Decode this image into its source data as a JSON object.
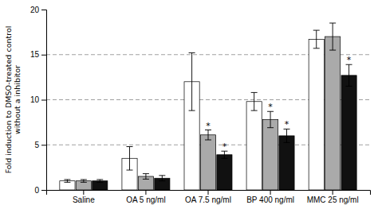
{
  "chart_data": {
    "type": "bar",
    "ylabel": "Fold induction to DMSO-treated control\nwithout a inhibitor",
    "categories": [
      "Saline",
      "OA 5 ng/ml",
      "OA 7.5 ng/ml",
      "BP 400 ng/ml",
      "MMC 25 ng/ml"
    ],
    "series": [
      {
        "color": "#ffffff",
        "values": [
          1.0,
          3.5,
          12.0,
          9.8,
          16.7
        ],
        "errors": [
          0.15,
          1.3,
          3.2,
          1.0,
          1.0
        ]
      },
      {
        "color": "#aaaaaa",
        "values": [
          1.0,
          1.5,
          6.1,
          7.8,
          17.0
        ],
        "errors": [
          0.15,
          0.3,
          0.55,
          0.9,
          1.5
        ]
      },
      {
        "color": "#111111",
        "values": [
          1.0,
          1.3,
          3.9,
          6.0,
          12.7
        ],
        "errors": [
          0.15,
          0.3,
          0.4,
          0.75,
          1.2
        ]
      }
    ],
    "annotations": [
      {
        "text": "*",
        "category": 2,
        "series": 1
      },
      {
        "text": "*",
        "category": 2,
        "series": 2
      },
      {
        "text": "*",
        "category": 3,
        "series": 1
      },
      {
        "text": "*",
        "category": 3,
        "series": 2
      },
      {
        "text": "*",
        "category": 4,
        "series": 2
      }
    ],
    "hlines": [
      5,
      10,
      15
    ],
    "ylim": [
      0,
      20
    ],
    "yticks": [
      0,
      5,
      10,
      15,
      20
    ]
  }
}
